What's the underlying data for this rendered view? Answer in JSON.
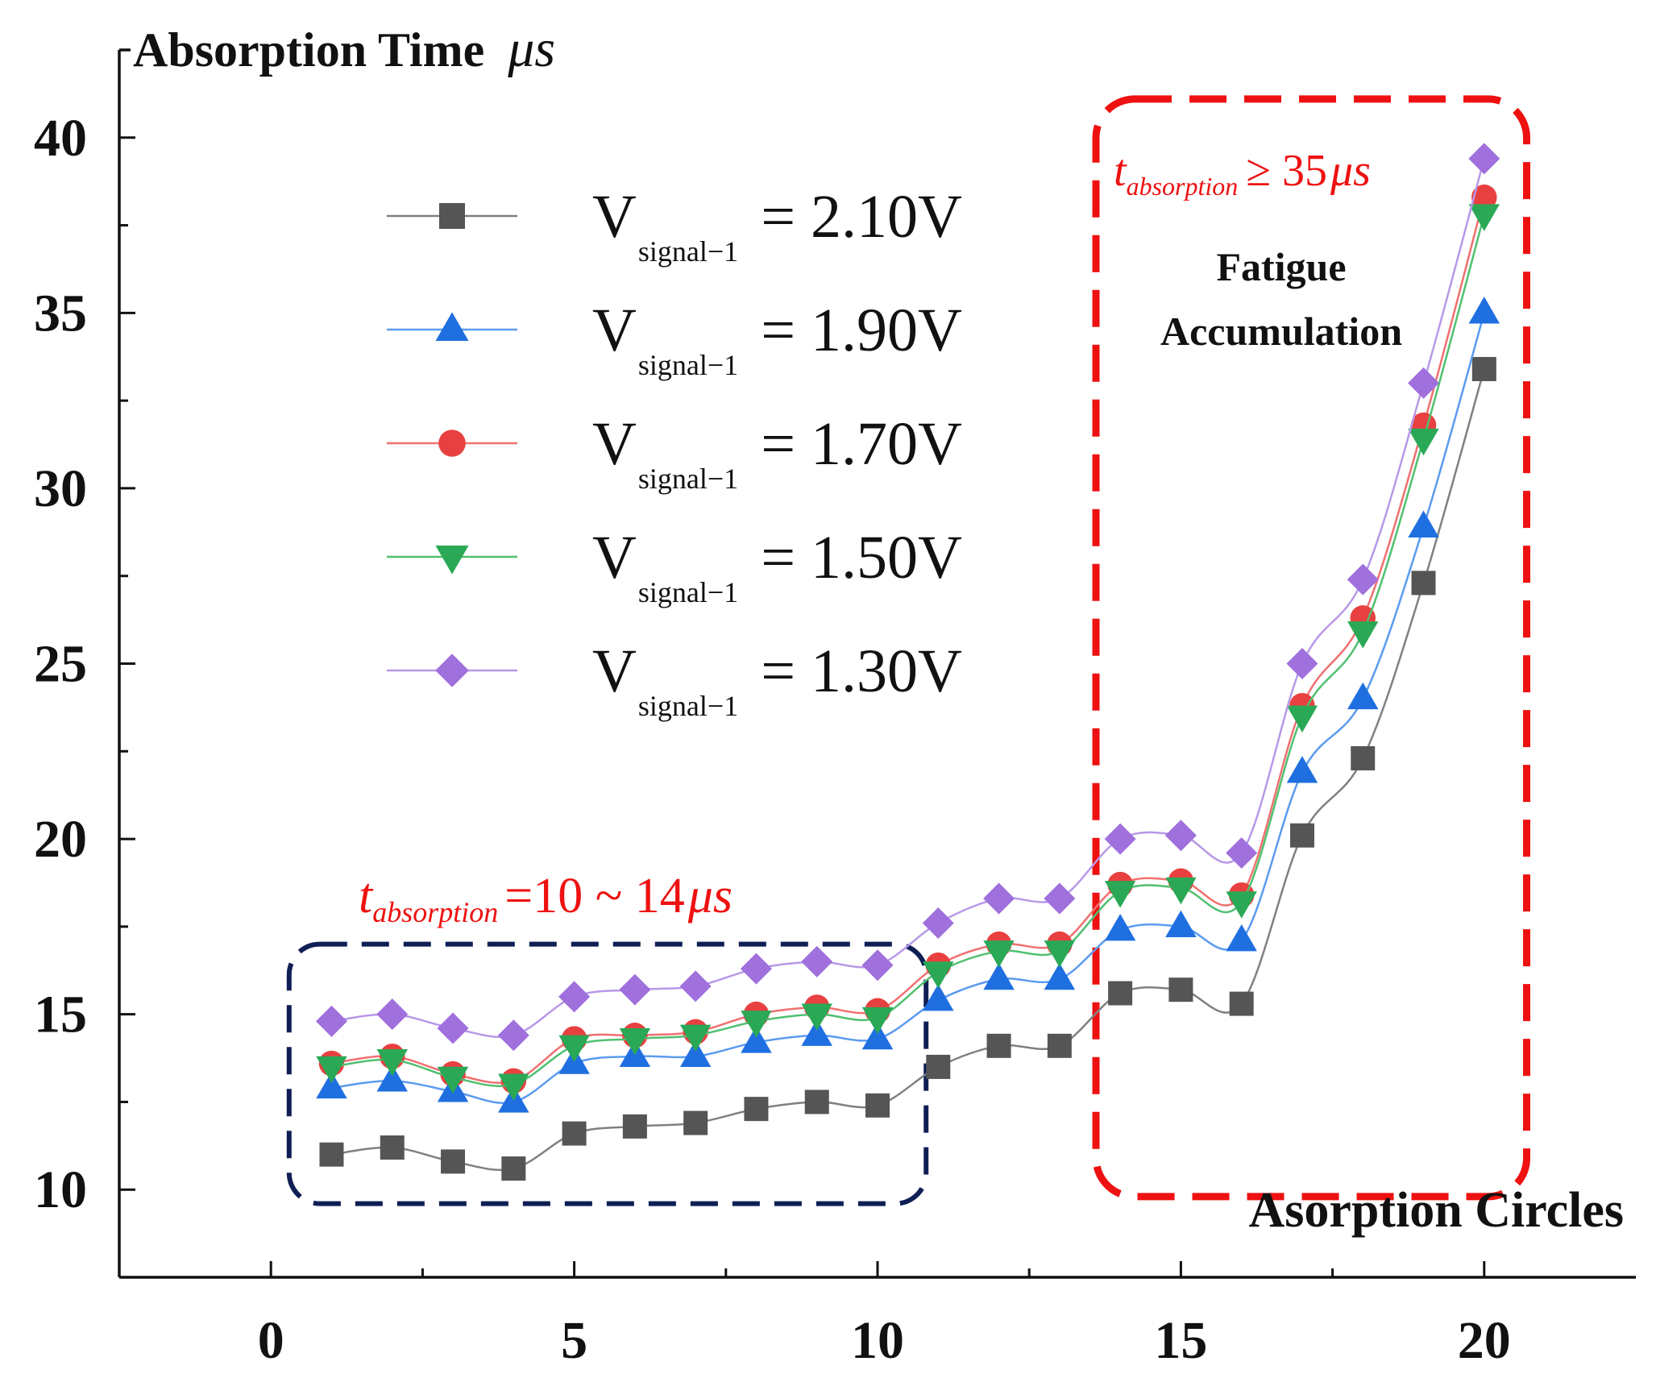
{
  "chart_data": {
    "type": "line",
    "ylabel": "Absorption Time",
    "ylabel_unit": "μs",
    "xlabel": "Asorption Circles",
    "xlim": [
      -2.5,
      22.5
    ],
    "ylim": [
      7.5,
      42.5
    ],
    "x_ticks_major": [
      0,
      5,
      10,
      15,
      20
    ],
    "x_ticks_minor": [
      2.5,
      7.5,
      12.5,
      17.5
    ],
    "y_ticks_major": [
      10,
      15,
      20,
      25,
      30,
      35,
      40
    ],
    "y_ticks_minor": [
      12.5,
      17.5,
      22.5,
      27.5,
      32.5,
      37.5
    ],
    "grid": false,
    "legend_position": "top-left",
    "x": [
      1,
      2,
      3,
      4,
      5,
      6,
      7,
      8,
      9,
      10,
      11,
      12,
      13,
      14,
      15,
      16,
      17,
      18,
      19,
      20
    ],
    "series": [
      {
        "name_main": "V",
        "name_sub": "signal−1",
        "name_value": "= 2.10V",
        "color": "#555555",
        "line_color": "#808080",
        "marker": "square",
        "values": [
          11.0,
          11.2,
          10.8,
          10.6,
          11.6,
          11.8,
          11.9,
          12.3,
          12.5,
          12.4,
          13.5,
          14.1,
          14.1,
          15.6,
          15.7,
          15.3,
          20.1,
          22.3,
          27.3,
          33.4
        ]
      },
      {
        "name_main": "V",
        "name_sub": "signal−1",
        "name_value": "= 1.90V",
        "color": "#1f6fe0",
        "line_color": "#5b9bf0",
        "marker": "triangle-up",
        "values": [
          12.9,
          13.1,
          12.8,
          12.5,
          13.6,
          13.8,
          13.8,
          14.2,
          14.4,
          14.3,
          15.4,
          16.0,
          16.0,
          17.4,
          17.5,
          17.1,
          21.9,
          24.0,
          28.9,
          35.0
        ]
      },
      {
        "name_main": "V",
        "name_sub": "signal−1",
        "name_value": "= 1.70V",
        "color": "#e84040",
        "line_color": "#f07070",
        "marker": "circle",
        "values": [
          13.6,
          13.8,
          13.3,
          13.1,
          14.3,
          14.4,
          14.5,
          15.0,
          15.2,
          15.1,
          16.4,
          17.0,
          17.0,
          18.7,
          18.8,
          18.4,
          23.8,
          26.3,
          31.8,
          38.3
        ]
      },
      {
        "name_main": "V",
        "name_sub": "signal−1",
        "name_value": "= 1.50V",
        "color": "#2aa856",
        "line_color": "#50c070",
        "marker": "triangle-down",
        "values": [
          13.5,
          13.7,
          13.2,
          13.0,
          14.1,
          14.3,
          14.4,
          14.8,
          15.0,
          14.9,
          16.2,
          16.8,
          16.8,
          18.5,
          18.6,
          18.2,
          23.5,
          25.9,
          31.4,
          37.8
        ]
      },
      {
        "name_main": "V",
        "name_sub": "signal−1",
        "name_value": "= 1.30V",
        "color": "#a070dd",
        "line_color": "#b898e8",
        "marker": "diamond",
        "values": [
          14.8,
          15.0,
          14.6,
          14.4,
          15.5,
          15.7,
          15.8,
          16.3,
          16.5,
          16.4,
          17.6,
          18.3,
          18.3,
          20.0,
          20.1,
          19.6,
          25.0,
          27.4,
          33.0,
          39.4
        ]
      }
    ],
    "annotations": {
      "low_region": {
        "label_t": "t",
        "label_sub": "absorption",
        "label_rest": "=10 ~ 14",
        "label_unit": "μs",
        "x_range": [
          0.3,
          10.8
        ],
        "y_range": [
          9.6,
          17.0
        ],
        "color": "#0f1f55"
      },
      "high_region": {
        "label_t": "t",
        "label_sub": "absorption",
        "label_rest": "≥ 35",
        "label_unit": "μs",
        "note_line1": "Fatigue",
        "note_line2": "Accumulation",
        "x_range": [
          13.6,
          20.7
        ],
        "y_range": [
          9.8,
          41.1
        ],
        "color": "#ee1111"
      }
    }
  }
}
